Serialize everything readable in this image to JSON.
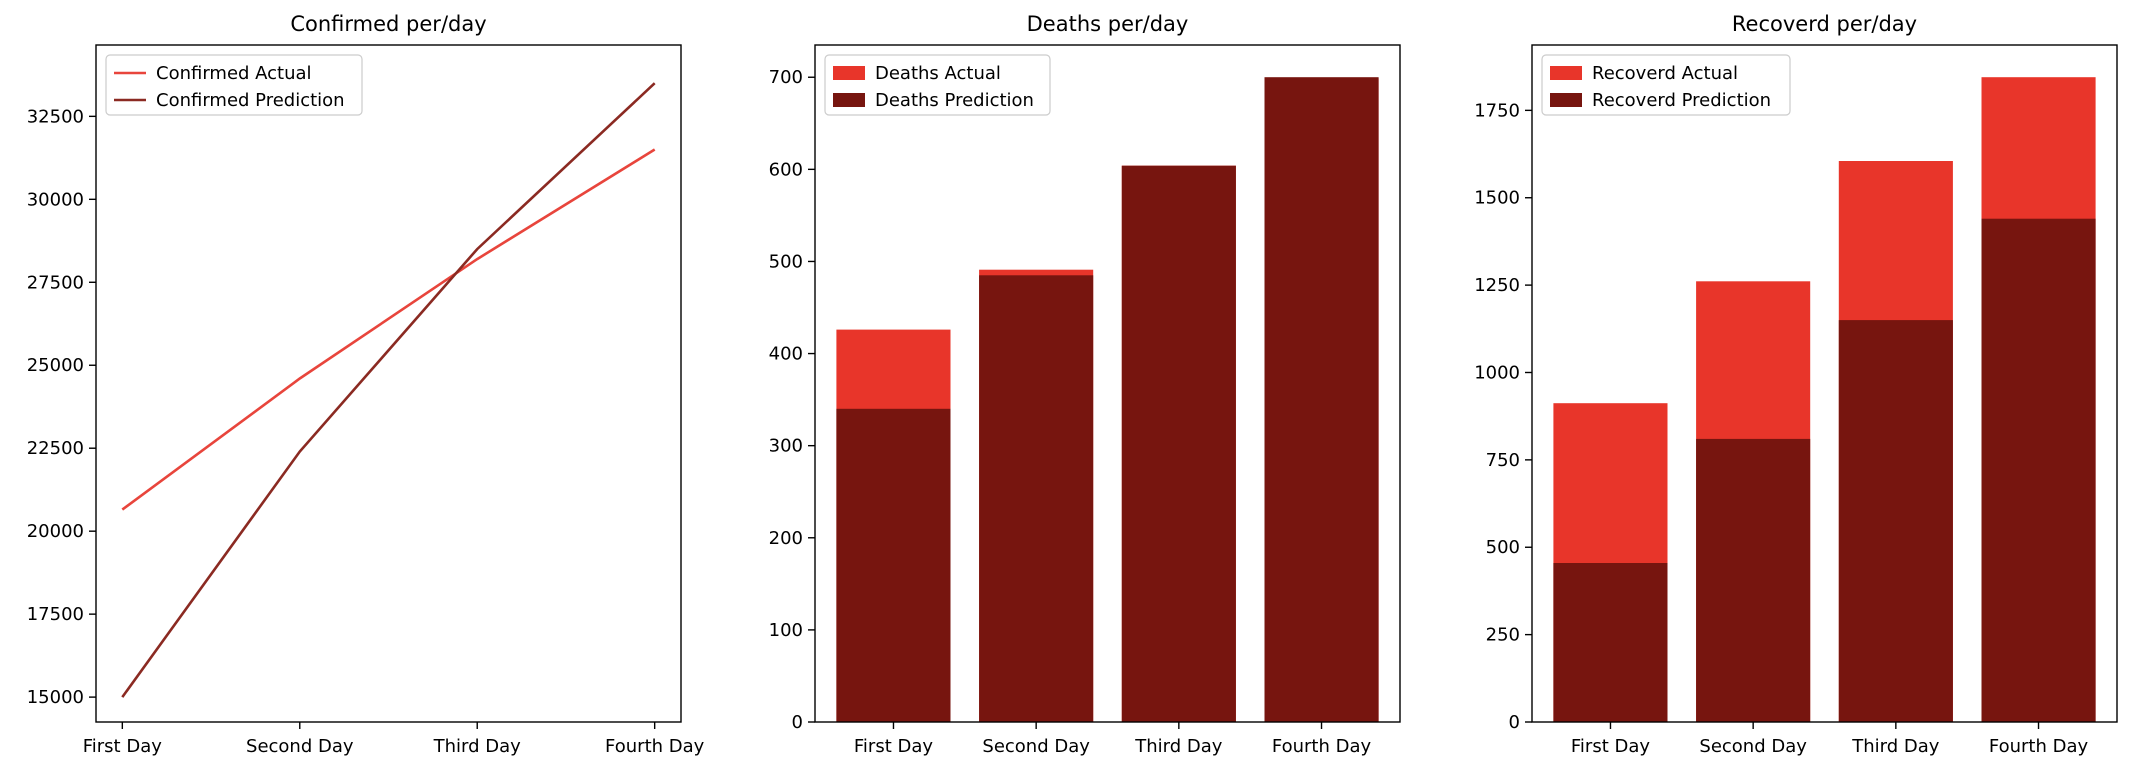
{
  "chart_data": [
    {
      "type": "line",
      "title": "Confirmed per/day",
      "categories": [
        "First Day",
        "Second Day",
        "Third Day",
        "Fourth Day"
      ],
      "series": [
        {
          "name": "Confirmed Actual",
          "values": [
            20650,
            24600,
            28200,
            31500
          ],
          "color": "#e8453c"
        },
        {
          "name": "Confirmed Prediction",
          "values": [
            15000,
            22400,
            28500,
            33500
          ],
          "color": "#8b2a22"
        }
      ],
      "yticks": [
        15000,
        17500,
        20000,
        22500,
        25000,
        27500,
        30000,
        32500
      ],
      "ylim": [
        14250,
        34650
      ],
      "xlabel": "",
      "ylabel": "",
      "grid": false,
      "legend": "upper-left"
    },
    {
      "type": "bar",
      "title": "Deaths per/day",
      "categories": [
        "First Day",
        "Second Day",
        "Third Day",
        "Fourth Day"
      ],
      "series": [
        {
          "name": "Deaths Actual",
          "values": [
            426,
            491,
            604,
            699
          ],
          "color": "#e8352a"
        },
        {
          "name": "Deaths Prediction",
          "values": [
            340,
            485,
            604,
            700
          ],
          "color": "#77150f"
        }
      ],
      "yticks": [
        0,
        100,
        200,
        300,
        400,
        500,
        600,
        700
      ],
      "ylim": [
        0,
        735
      ],
      "xlabel": "",
      "ylabel": "",
      "grid": false,
      "legend": "upper-left"
    },
    {
      "type": "bar",
      "title": "Recoverd per/day",
      "categories": [
        "First Day",
        "Second Day",
        "Third Day",
        "Fourth Day"
      ],
      "series": [
        {
          "name": "Recoverd Actual",
          "values": [
            912,
            1261,
            1605,
            1845
          ],
          "color": "#e8352a"
        },
        {
          "name": "Recoverd Prediction",
          "values": [
            455,
            810,
            1150,
            1440
          ],
          "color": "#77150f"
        }
      ],
      "yticks": [
        0,
        250,
        500,
        750,
        1000,
        1250,
        1500,
        1750
      ],
      "ylim": [
        0,
        1937
      ],
      "xlabel": "",
      "ylabel": "",
      "grid": false,
      "legend": "upper-left"
    }
  ]
}
